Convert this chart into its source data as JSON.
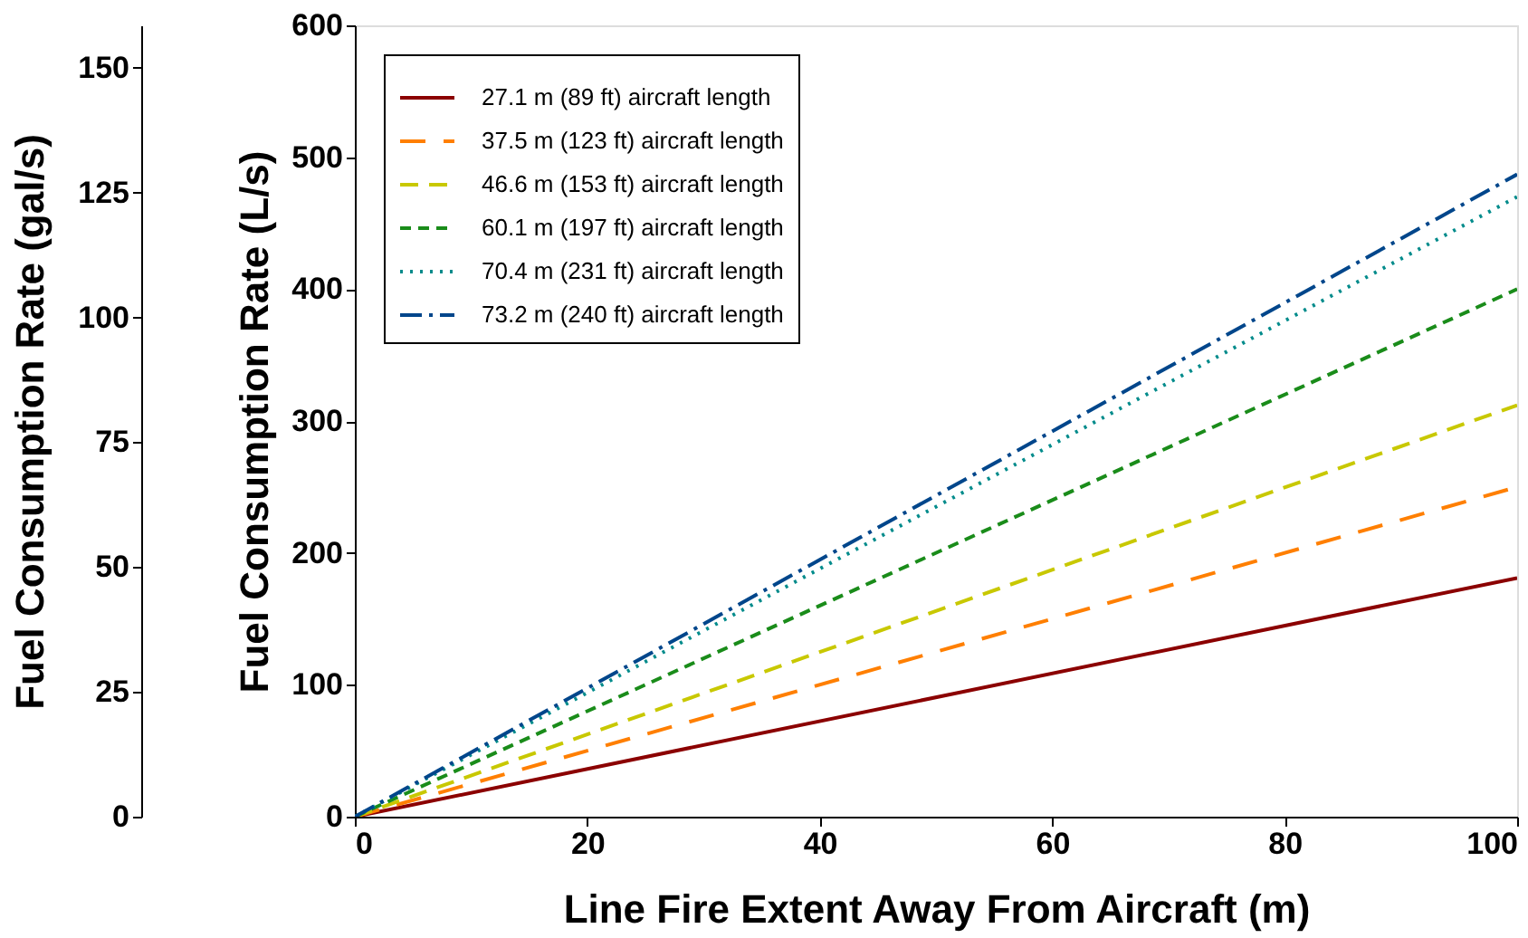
{
  "chart_data": {
    "type": "line",
    "xlabel": "Line Fire Extent Away From Aircraft (m)",
    "ylabel": "Fuel Consumption Rate (L/s)",
    "y2label": "Fuel Consumption Rate (gal/s)",
    "x": [
      0,
      100
    ],
    "series": [
      {
        "name": "27.1 m (89 ft) aircraft length",
        "color": "#8b0000",
        "values": [
          0,
          181
        ],
        "line_style": "solid"
      },
      {
        "name": "37.5 m (123 ft) aircraft length",
        "color": "#ff7f00",
        "values": [
          0,
          250
        ],
        "line_style": "dashed"
      },
      {
        "name": "46.6 m (153 ft) aircraft length",
        "color": "#c8c800",
        "values": [
          0,
          312
        ],
        "line_style": "dashed"
      },
      {
        "name": "60.1 m (197 ft) aircraft length",
        "color": "#1a8c1a",
        "values": [
          0,
          400
        ],
        "line_style": "dashed"
      },
      {
        "name": "70.4 m (231 ft) aircraft length",
        "color": "#008b8b",
        "values": [
          0,
          470
        ],
        "line_style": "dotted"
      },
      {
        "name": "73.2 m (240 ft) aircraft length",
        "color": "#00468b",
        "values": [
          0,
          487
        ],
        "line_style": "dashdot"
      }
    ],
    "xlim": [
      0,
      100
    ],
    "xticks": [
      0,
      20,
      40,
      60,
      80,
      100
    ],
    "ylim": [
      0,
      600
    ],
    "yticks": [
      0,
      100,
      200,
      300,
      400,
      500,
      600
    ],
    "y2lim": [
      0,
      158.5
    ],
    "y2ticks": [
      0,
      25,
      50,
      75,
      100,
      125,
      150
    ],
    "legend": "top left",
    "grid": false
  }
}
